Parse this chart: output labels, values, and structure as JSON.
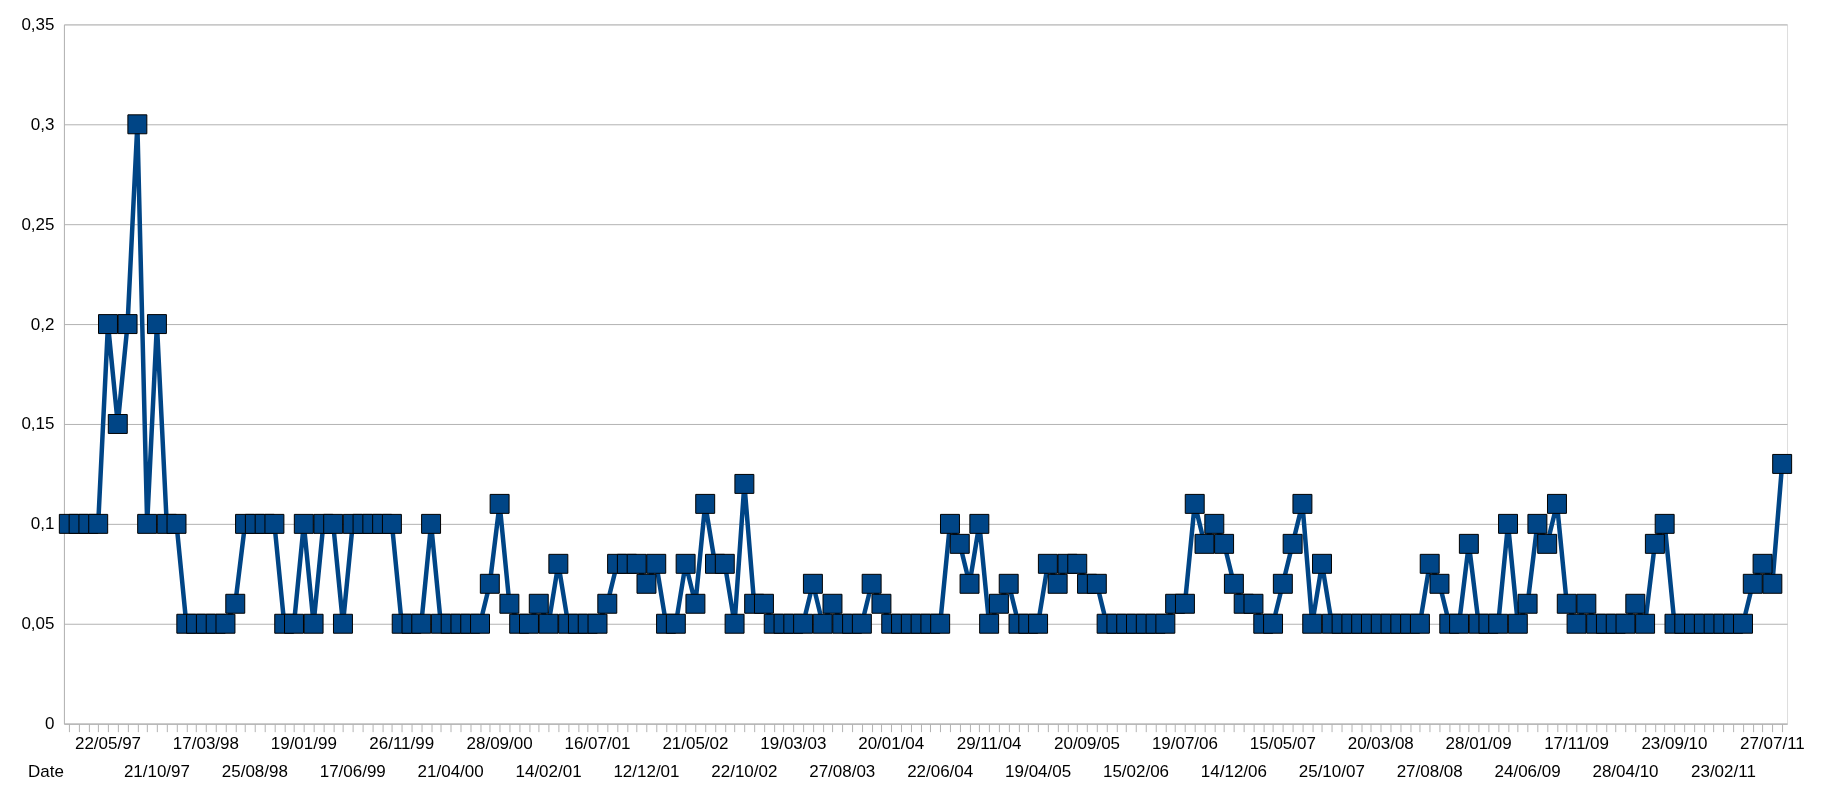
{
  "chart_data": {
    "type": "line",
    "xlabel": "Date",
    "categories": [
      null,
      null,
      null,
      null,
      "22/05/97",
      null,
      null,
      null,
      null,
      "21/10/97",
      null,
      null,
      null,
      null,
      "17/03/98",
      null,
      null,
      null,
      null,
      "25/08/98",
      null,
      null,
      null,
      null,
      "19/01/99",
      null,
      null,
      null,
      null,
      "17/06/99",
      null,
      null,
      null,
      null,
      "26/11/99",
      null,
      null,
      null,
      null,
      "21/04/00",
      null,
      null,
      null,
      null,
      "28/09/00",
      null,
      null,
      null,
      null,
      "14/02/01",
      null,
      null,
      null,
      null,
      "16/07/01",
      null,
      null,
      null,
      null,
      "12/12/01",
      null,
      null,
      null,
      null,
      "21/05/02",
      null,
      null,
      null,
      null,
      "22/10/02",
      null,
      null,
      null,
      null,
      "19/03/03",
      null,
      null,
      null,
      null,
      "27/08/03",
      null,
      null,
      null,
      null,
      "20/01/04",
      null,
      null,
      null,
      null,
      "22/06/04",
      null,
      null,
      null,
      null,
      "29/11/04",
      null,
      null,
      null,
      null,
      "19/04/05",
      null,
      null,
      null,
      null,
      "20/09/05",
      null,
      null,
      null,
      null,
      "15/02/06",
      null,
      null,
      null,
      null,
      "19/07/06",
      null,
      null,
      null,
      null,
      "14/12/06",
      null,
      null,
      null,
      null,
      "15/05/07",
      null,
      null,
      null,
      null,
      "25/10/07",
      null,
      null,
      null,
      null,
      "20/03/08",
      null,
      null,
      null,
      null,
      "27/08/08",
      null,
      null,
      null,
      null,
      "28/01/09",
      null,
      null,
      null,
      null,
      "24/06/09",
      null,
      null,
      null,
      null,
      "17/11/09",
      null,
      null,
      null,
      null,
      "28/04/10",
      null,
      null,
      null,
      null,
      "23/09/10",
      null,
      null,
      null,
      null,
      "23/02/11",
      null,
      null,
      null,
      null,
      "27/07/11",
      null
    ],
    "series": [
      {
        "color": "#004586",
        "values": [
          0.1,
          0.1,
          0.1,
          0.1,
          0.2,
          0.15,
          0.2,
          0.3,
          0.1,
          0.2,
          0.1,
          0.1,
          0.05,
          0.05,
          0.05,
          0.05,
          0.05,
          0.06,
          0.1,
          0.1,
          0.1,
          0.1,
          0.05,
          0.05,
          0.1,
          0.05,
          0.1,
          0.1,
          0.05,
          0.1,
          0.1,
          0.1,
          0.1,
          0.1,
          0.05,
          0.05,
          0.05,
          0.1,
          0.05,
          0.05,
          0.05,
          0.05,
          0.05,
          0.07,
          0.11,
          0.06,
          0.05,
          0.05,
          0.06,
          0.05,
          0.08,
          0.05,
          0.05,
          0.05,
          0.05,
          0.06,
          0.08,
          0.08,
          0.08,
          0.07,
          0.08,
          0.05,
          0.05,
          0.08,
          0.06,
          0.11,
          0.08,
          0.08,
          0.05,
          0.12,
          0.06,
          0.06,
          0.05,
          0.05,
          0.05,
          0.05,
          0.07,
          0.05,
          0.06,
          0.05,
          0.05,
          0.05,
          0.07,
          0.06,
          0.05,
          0.05,
          0.05,
          0.05,
          0.05,
          0.05,
          0.1,
          0.09,
          0.07,
          0.1,
          0.05,
          0.06,
          0.07,
          0.05,
          0.05,
          0.05,
          0.08,
          0.07,
          0.08,
          0.08,
          0.07,
          0.07,
          0.05,
          0.05,
          0.05,
          0.05,
          0.05,
          0.05,
          0.05,
          0.06,
          0.06,
          0.11,
          0.09,
          0.1,
          0.09,
          0.07,
          0.06,
          0.06,
          0.05,
          0.05,
          0.07,
          0.09,
          0.11,
          0.05,
          0.08,
          0.05,
          0.05,
          0.05,
          0.05,
          0.05,
          0.05,
          0.05,
          0.05,
          0.05,
          0.05,
          0.08,
          0.07,
          0.05,
          0.05,
          0.09,
          0.05,
          0.05,
          0.05,
          0.1,
          0.05,
          0.06,
          0.1,
          0.09,
          0.11,
          0.06,
          0.05,
          0.06,
          0.05,
          0.05,
          0.05,
          0.05,
          0.06,
          0.05,
          0.09,
          0.1,
          0.05,
          0.05,
          0.05,
          0.05,
          0.05,
          0.05,
          0.05,
          0.05,
          0.07,
          0.08,
          0.07,
          0.13
        ]
      }
    ],
    "ylim": [
      0,
      0.35
    ],
    "yticks": [
      0,
      {
        "value": 0.05,
        "label": "0,05"
      },
      {
        "value": 0.1,
        "label": "0,1"
      },
      {
        "value": 0.15,
        "label": "0,15"
      },
      {
        "value": 0.2,
        "label": "0,2"
      },
      {
        "value": 0.25,
        "label": "0,25"
      },
      {
        "value": 0.3,
        "label": "0,3"
      },
      {
        "value": 0.35,
        "label": "0,35"
      }
    ],
    "grid": "y",
    "marker": "square",
    "line_style": "solid"
  }
}
